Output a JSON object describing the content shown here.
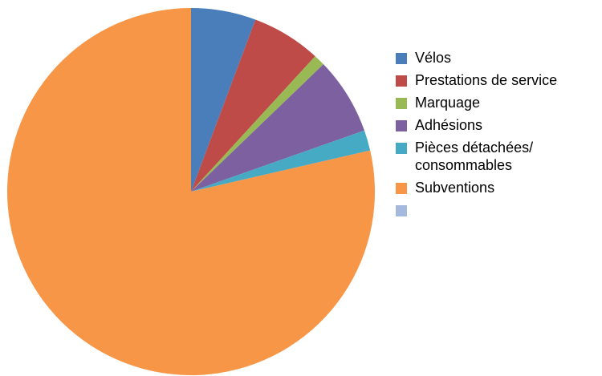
{
  "chart_data": {
    "type": "pie",
    "title": "",
    "start_angle_deg": 90,
    "direction": "clockwise",
    "slices": [
      {
        "label": "Vélos",
        "value": 5.7,
        "color": "#4A7EBB"
      },
      {
        "label": "Prestations de service",
        "value": 6.1,
        "color": "#BE4B48"
      },
      {
        "label": "Marquage",
        "value": 1.0,
        "color": "#98B954"
      },
      {
        "label": "Adhésions",
        "value": 6.8,
        "color": "#7D60A0"
      },
      {
        "label": "Pièces détachées/\nconsommables",
        "value": 1.8,
        "color": "#46AAC5"
      },
      {
        "label": "Subventions",
        "value": 78.6,
        "color": "#F79646"
      },
      {
        "label": "",
        "value": 0,
        "color": "#A5B9DE"
      }
    ],
    "legend_position": "right"
  }
}
